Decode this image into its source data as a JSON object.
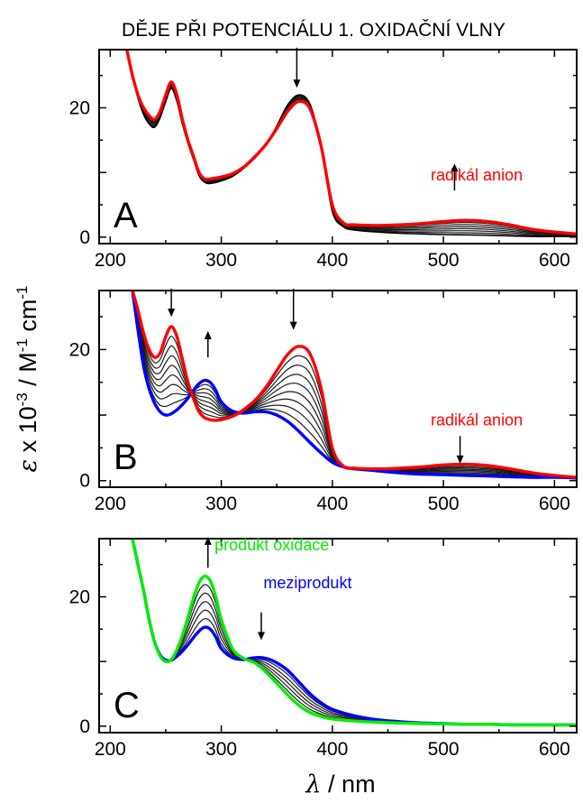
{
  "title": "DĚJE PŘI POTENCIÁLU 1. OXIDAČNÍ VLNY",
  "chart_data": {
    "type": "line",
    "title": "DĚJE PŘI POTENCIÁLU 1. OXIDAČNÍ VLNY",
    "xlabel": "λ / nm",
    "ylabel": "ε x 10-3 / M-1 cm-1",
    "ylabel_parts": {
      "symbol": "ε",
      "pre": " x 10",
      "exp1": "-3",
      "mid": " / M",
      "exp2": "-1",
      "post": " cm",
      "exp3": "-1"
    },
    "xlabel_parts": {
      "symbol": "λ",
      "post": " / nm"
    },
    "xlim": [
      190,
      620
    ],
    "ylim": [
      -1,
      29
    ],
    "xticks": [
      200,
      300,
      400,
      500,
      600
    ],
    "yticks": [
      0,
      20
    ],
    "colors": {
      "red": "#ff0000",
      "blue": "#0000ff",
      "green": "#00ee00",
      "black": "#000000",
      "intermediate": "#1a1a1a"
    },
    "panels": [
      {
        "label": "A",
        "intermediates": 6,
        "start": {
          "color": "black",
          "x": [
            215,
            220,
            225,
            230,
            235,
            240,
            245,
            250,
            255,
            260,
            265,
            270,
            275,
            280,
            285,
            290,
            300,
            310,
            320,
            330,
            340,
            350,
            360,
            370,
            380,
            390,
            400,
            410,
            420,
            440,
            460,
            480,
            500,
            520,
            540,
            560,
            580,
            600,
            620
          ],
          "y": [
            29,
            25,
            21.5,
            19,
            17.5,
            17,
            18.5,
            21,
            23,
            21,
            17.5,
            14.5,
            12,
            9.5,
            8.5,
            8.3,
            8.7,
            9.4,
            10.6,
            12.2,
            14.2,
            17.2,
            20.5,
            22,
            20.5,
            14,
            4,
            1.6,
            1.1,
            0.8,
            0.6,
            0.5,
            0.4,
            0.35,
            0.3,
            0.2,
            0.1,
            0.1,
            0.1
          ]
        },
        "end": {
          "color": "red",
          "x": [
            215,
            220,
            225,
            230,
            235,
            240,
            245,
            250,
            255,
            260,
            265,
            270,
            275,
            280,
            285,
            290,
            300,
            310,
            320,
            330,
            340,
            350,
            360,
            370,
            380,
            390,
            400,
            410,
            420,
            440,
            460,
            480,
            500,
            520,
            540,
            560,
            580,
            600,
            620
          ],
          "y": [
            29,
            25,
            22,
            20,
            18.8,
            18.2,
            19.5,
            22,
            24,
            22,
            18.2,
            15,
            12.5,
            10,
            9,
            9,
            9.3,
            9.8,
            10.8,
            12.4,
            14.3,
            16.8,
            19.5,
            21,
            19.8,
            14,
            5,
            2.2,
            1.9,
            1.8,
            1.9,
            2.1,
            2.4,
            2.6,
            2.4,
            1.9,
            1.2,
            0.8,
            0.5
          ]
        },
        "annotations": [
          {
            "text": "radikál anion",
            "color": "red",
            "x": 530,
            "y": 8.8
          },
          {
            "text": "",
            "color": "black",
            "x": 510,
            "y": 7.2,
            "arrow": "up",
            "length": 4.2
          },
          {
            "text": "",
            "color": "black",
            "x": 368,
            "y": 29.3,
            "arrow": "down",
            "length": 6.2
          }
        ]
      },
      {
        "label": "B",
        "intermediates": 8,
        "start": {
          "color": "blue",
          "x": [
            220,
            225,
            230,
            235,
            240,
            245,
            250,
            255,
            260,
            265,
            270,
            275,
            280,
            285,
            290,
            295,
            300,
            310,
            320,
            330,
            340,
            350,
            360,
            370,
            380,
            390,
            400,
            410,
            420,
            440,
            460,
            480,
            500,
            520,
            540,
            560,
            580,
            600,
            620
          ],
          "y": [
            29,
            23,
            17.5,
            14,
            11.8,
            10.5,
            10,
            10.2,
            10.8,
            11.6,
            12.6,
            13.8,
            14.8,
            15.3,
            15,
            13.8,
            12,
            10.6,
            10.3,
            10.5,
            10.5,
            10,
            9,
            7.5,
            5.8,
            4.2,
            2.8,
            2.1,
            1.8,
            1.5,
            1.2,
            1.0,
            0.9,
            0.8,
            0.7,
            0.6,
            0.5,
            0.5,
            0.4
          ]
        },
        "end": {
          "color": "red",
          "x": [
            220,
            225,
            230,
            235,
            240,
            245,
            250,
            255,
            260,
            265,
            270,
            275,
            280,
            285,
            290,
            295,
            300,
            310,
            320,
            330,
            340,
            350,
            360,
            370,
            380,
            390,
            400,
            410,
            420,
            440,
            460,
            480,
            500,
            520,
            540,
            560,
            580,
            600,
            620
          ],
          "y": [
            29,
            26,
            22.5,
            20,
            18.8,
            19.5,
            22,
            23.5,
            22,
            18.5,
            15,
            12.5,
            10.5,
            9.6,
            9.3,
            9.2,
            9.3,
            9.8,
            10.8,
            12.2,
            14.2,
            16.8,
            19.3,
            20.5,
            19.3,
            14,
            5,
            2.2,
            1.9,
            1.8,
            1.9,
            2.1,
            2.4,
            2.5,
            2.3,
            1.8,
            1.2,
            0.8,
            0.5
          ]
        },
        "annotations": [
          {
            "text": "radikál anion",
            "color": "red",
            "x": 530,
            "y": 8.4
          },
          {
            "text": "",
            "color": "black",
            "x": 515,
            "y": 6.8,
            "arrow": "down",
            "length": 4.2
          },
          {
            "text": "",
            "color": "black",
            "x": 255,
            "y": 29.3,
            "arrow": "down",
            "length": 4.3
          },
          {
            "text": "",
            "color": "black",
            "x": 288,
            "y": 18.8,
            "arrow": "up",
            "length": 4
          },
          {
            "text": "",
            "color": "black",
            "x": 365,
            "y": 29.3,
            "arrow": "down",
            "length": 6.3
          }
        ]
      },
      {
        "label": "C",
        "intermediates": 5,
        "start": {
          "color": "blue",
          "x": [
            220,
            225,
            230,
            235,
            240,
            245,
            250,
            255,
            260,
            265,
            270,
            275,
            280,
            285,
            290,
            295,
            300,
            310,
            320,
            330,
            340,
            350,
            360,
            370,
            380,
            390,
            400,
            420,
            440,
            460,
            480,
            500,
            520,
            540,
            560,
            580,
            600,
            620
          ],
          "y": [
            29,
            25,
            21,
            16.5,
            13,
            11,
            10.2,
            10.2,
            10.8,
            11.6,
            12.6,
            13.7,
            14.7,
            15.3,
            15,
            13.8,
            12,
            10.6,
            10.3,
            10.6,
            10.5,
            9.8,
            8.6,
            6.8,
            5,
            3.6,
            2.6,
            1.6,
            1.0,
            0.7,
            0.5,
            0.4,
            0.3,
            0.3,
            0.2,
            0.2,
            0.2,
            0.2
          ]
        },
        "end": {
          "color": "green",
          "x": [
            220,
            225,
            230,
            235,
            240,
            245,
            250,
            255,
            260,
            265,
            270,
            275,
            280,
            285,
            290,
            295,
            300,
            310,
            320,
            330,
            340,
            350,
            360,
            370,
            380,
            390,
            400,
            420,
            440,
            460,
            480,
            500,
            520,
            540,
            560,
            580,
            600,
            620
          ],
          "y": [
            29,
            25,
            21,
            16.5,
            13,
            10.8,
            10,
            10.3,
            11.8,
            14,
            16.8,
            19.8,
            22.2,
            23.2,
            22.5,
            20,
            16.5,
            12,
            10.5,
            9.8,
            8.4,
            6.6,
            4.8,
            3.2,
            2.1,
            1.5,
            1.1,
            0.8,
            0.6,
            0.5,
            0.4,
            0.35,
            0.3,
            0.3,
            0.2,
            0.2,
            0.2,
            0.2
          ]
        },
        "annotations": [
          {
            "text": "produkt oxidace",
            "color": "green",
            "x": 294,
            "y": 27.2,
            "anchor": "start"
          },
          {
            "text": "meziprodukt",
            "color": "blue",
            "x": 338,
            "y": 21.3,
            "anchor": "start"
          },
          {
            "text": "",
            "color": "black",
            "x": 288,
            "y": 24.5,
            "arrow": "up",
            "length": 4.8
          },
          {
            "text": "",
            "color": "black",
            "x": 336,
            "y": 17.6,
            "arrow": "down",
            "length": 4.3
          }
        ]
      }
    ]
  }
}
